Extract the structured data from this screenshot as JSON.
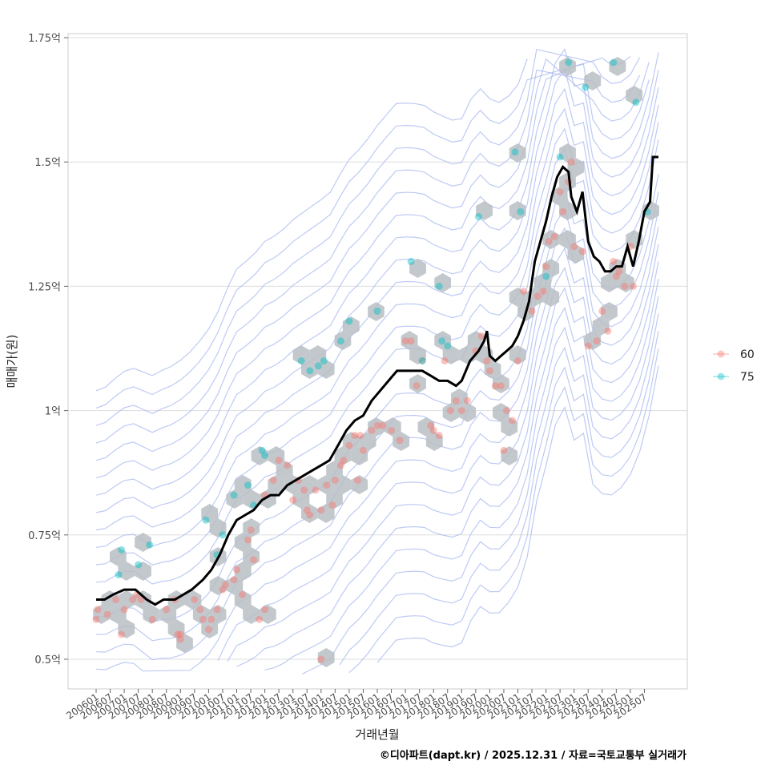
{
  "chart_data": {
    "type": "scatter",
    "title": "",
    "xlabel": "거래년월",
    "ylabel": "매매가(원)",
    "caption": "©디아파트(dapt.kr) / 2025.12.31 / 자료=국토교통부 실거래가",
    "x_range": [
      2006.0,
      2026.0
    ],
    "y_range": [
      0.45,
      1.76
    ],
    "grid": true,
    "y_ticks": [
      {
        "value": 0.5,
        "label": "0.5억"
      },
      {
        "value": 0.75,
        "label": "0.75억"
      },
      {
        "value": 1.0,
        "label": "1억"
      },
      {
        "value": 1.25,
        "label": "1.25억"
      },
      {
        "value": 1.5,
        "label": "1.5억"
      },
      {
        "value": 1.75,
        "label": "1.75억"
      }
    ],
    "x_ticks": [
      "200601",
      "200607",
      "200701",
      "200707",
      "200801",
      "200807",
      "200901",
      "200907",
      "201001",
      "201007",
      "201101",
      "201107",
      "201201",
      "201207",
      "201301",
      "201307",
      "201401",
      "201407",
      "201501",
      "201507",
      "201601",
      "201607",
      "201701",
      "201707",
      "201801",
      "201807",
      "201901",
      "201907",
      "202001",
      "202007",
      "202101",
      "202107",
      "202201",
      "202207",
      "202301",
      "202307",
      "202401",
      "202407",
      "202501",
      "202507"
    ],
    "legend": {
      "position": "right",
      "entries": [
        {
          "label": "60",
          "color": "#F8766D"
        },
        {
          "label": "75",
          "color": "#00BFC4"
        }
      ]
    },
    "series": [
      {
        "name": "60",
        "color": "#F8766D",
        "points": [
          [
            2006.0,
            0.58
          ],
          [
            2006.05,
            0.6
          ],
          [
            2006.4,
            0.59
          ],
          [
            2006.7,
            0.62
          ],
          [
            2006.9,
            0.55
          ],
          [
            2007.0,
            0.6
          ],
          [
            2007.3,
            0.62
          ],
          [
            2007.45,
            0.63
          ],
          [
            2007.6,
            0.62
          ],
          [
            2008.0,
            0.58
          ],
          [
            2008.5,
            0.6
          ],
          [
            2008.9,
            0.55
          ],
          [
            2009.0,
            0.54
          ],
          [
            2009.5,
            0.62
          ],
          [
            2009.7,
            0.6
          ],
          [
            2009.8,
            0.58
          ],
          [
            2010.0,
            0.56
          ],
          [
            2010.1,
            0.58
          ],
          [
            2010.3,
            0.6
          ],
          [
            2010.5,
            0.64
          ],
          [
            2010.6,
            0.65
          ],
          [
            2010.9,
            0.66
          ],
          [
            2011.0,
            0.68
          ],
          [
            2011.2,
            0.63
          ],
          [
            2011.4,
            0.74
          ],
          [
            2011.5,
            0.76
          ],
          [
            2011.6,
            0.7
          ],
          [
            2012.0,
            0.83
          ],
          [
            2012.3,
            0.86
          ],
          [
            2012.5,
            0.9
          ],
          [
            2012.8,
            0.89
          ],
          [
            2013.0,
            0.82
          ],
          [
            2013.2,
            0.86
          ],
          [
            2013.4,
            0.84
          ],
          [
            2013.5,
            0.8
          ],
          [
            2013.6,
            0.79
          ],
          [
            2013.8,
            0.84
          ],
          [
            2014.0,
            0.8
          ],
          [
            2014.2,
            0.85
          ],
          [
            2014.4,
            0.81
          ],
          [
            2014.5,
            0.86
          ],
          [
            2014.7,
            0.89
          ],
          [
            2014.8,
            0.9
          ],
          [
            2015.0,
            0.93
          ],
          [
            2015.2,
            0.95
          ],
          [
            2015.4,
            0.95
          ],
          [
            2015.5,
            0.92
          ],
          [
            2015.3,
            0.86
          ],
          [
            2015.8,
            0.96
          ],
          [
            2016.0,
            0.97
          ],
          [
            2016.2,
            0.97
          ],
          [
            2016.5,
            0.96
          ],
          [
            2016.8,
            0.94
          ],
          [
            2017.0,
            1.14
          ],
          [
            2017.2,
            1.14
          ],
          [
            2017.4,
            1.05
          ],
          [
            2017.6,
            1.1
          ],
          [
            2017.9,
            0.97
          ],
          [
            2018.0,
            0.96
          ],
          [
            2018.2,
            0.95
          ],
          [
            2018.4,
            1.1
          ],
          [
            2018.6,
            1.0
          ],
          [
            2018.8,
            1.02
          ],
          [
            2019.0,
            1.0
          ],
          [
            2019.2,
            1.02
          ],
          [
            2019.5,
            1.12
          ],
          [
            2019.7,
            1.15
          ],
          [
            2019.9,
            1.1
          ],
          [
            2020.0,
            1.08
          ],
          [
            2020.2,
            1.05
          ],
          [
            2020.4,
            1.05
          ],
          [
            2020.5,
            0.92
          ],
          [
            2020.6,
            1.0
          ],
          [
            2020.8,
            0.98
          ],
          [
            2021.0,
            1.1
          ],
          [
            2021.2,
            1.24
          ],
          [
            2021.5,
            1.2
          ],
          [
            2021.7,
            1.23
          ],
          [
            2021.9,
            1.24
          ],
          [
            2022.0,
            1.29
          ],
          [
            2022.1,
            1.34
          ],
          [
            2022.3,
            1.35
          ],
          [
            2022.5,
            1.44
          ],
          [
            2022.6,
            1.4
          ],
          [
            2022.8,
            1.46
          ],
          [
            2022.9,
            1.5
          ],
          [
            2023.0,
            1.33
          ],
          [
            2023.3,
            1.32
          ],
          [
            2023.5,
            1.13
          ],
          [
            2023.8,
            1.14
          ],
          [
            2024.0,
            1.2
          ],
          [
            2024.2,
            1.16
          ],
          [
            2024.4,
            1.3
          ],
          [
            2024.5,
            1.27
          ],
          [
            2024.6,
            1.28
          ],
          [
            2024.8,
            1.25
          ],
          [
            2025.0,
            1.33
          ],
          [
            2025.1,
            1.25
          ],
          [
            2014.0,
            0.5
          ],
          [
            2011.8,
            0.58
          ],
          [
            2012.0,
            0.6
          ],
          [
            2009.0,
            0.55
          ],
          [
            2008.8,
            0.62
          ]
        ]
      },
      {
        "name": "75",
        "color": "#00BFC4",
        "points": [
          [
            2006.8,
            0.67
          ],
          [
            2006.9,
            0.72
          ],
          [
            2007.5,
            0.69
          ],
          [
            2007.9,
            0.73
          ],
          [
            2009.9,
            0.78
          ],
          [
            2010.3,
            0.71
          ],
          [
            2010.5,
            0.75
          ],
          [
            2010.9,
            0.83
          ],
          [
            2011.4,
            0.85
          ],
          [
            2011.6,
            0.81
          ],
          [
            2011.9,
            0.92
          ],
          [
            2012.0,
            0.91
          ],
          [
            2013.3,
            1.1
          ],
          [
            2013.6,
            1.08
          ],
          [
            2013.9,
            1.09
          ],
          [
            2014.1,
            1.1
          ],
          [
            2014.7,
            1.14
          ],
          [
            2015.0,
            1.18
          ],
          [
            2016.0,
            1.2
          ],
          [
            2017.2,
            1.3
          ],
          [
            2017.6,
            1.1
          ],
          [
            2018.3,
            1.14
          ],
          [
            2018.5,
            1.13
          ],
          [
            2018.2,
            1.25
          ],
          [
            2019.6,
            1.39
          ],
          [
            2020.9,
            1.52
          ],
          [
            2021.1,
            1.4
          ],
          [
            2022.0,
            1.27
          ],
          [
            2022.5,
            1.51
          ],
          [
            2022.8,
            1.7
          ],
          [
            2023.4,
            1.65
          ],
          [
            2024.4,
            1.7
          ],
          [
            2025.2,
            1.62
          ],
          [
            2025.6,
            1.4
          ]
        ]
      }
    ],
    "trend_line": {
      "name": "moving-average",
      "color": "#000000",
      "points": [
        [
          2006.0,
          0.62
        ],
        [
          2006.3,
          0.62
        ],
        [
          2006.6,
          0.63
        ],
        [
          2007.0,
          0.64
        ],
        [
          2007.4,
          0.64
        ],
        [
          2007.8,
          0.62
        ],
        [
          2008.1,
          0.61
        ],
        [
          2008.4,
          0.62
        ],
        [
          2008.8,
          0.62
        ],
        [
          2009.1,
          0.63
        ],
        [
          2009.4,
          0.64
        ],
        [
          2009.8,
          0.66
        ],
        [
          2010.1,
          0.68
        ],
        [
          2010.4,
          0.71
        ],
        [
          2010.7,
          0.75
        ],
        [
          2011.0,
          0.78
        ],
        [
          2011.3,
          0.79
        ],
        [
          2011.6,
          0.8
        ],
        [
          2011.9,
          0.82
        ],
        [
          2012.2,
          0.83
        ],
        [
          2012.5,
          0.83
        ],
        [
          2012.8,
          0.85
        ],
        [
          2013.1,
          0.86
        ],
        [
          2013.4,
          0.87
        ],
        [
          2013.7,
          0.88
        ],
        [
          2014.0,
          0.89
        ],
        [
          2014.3,
          0.9
        ],
        [
          2014.6,
          0.93
        ],
        [
          2014.9,
          0.96
        ],
        [
          2015.2,
          0.98
        ],
        [
          2015.5,
          0.99
        ],
        [
          2015.8,
          1.02
        ],
        [
          2016.1,
          1.04
        ],
        [
          2016.4,
          1.06
        ],
        [
          2016.7,
          1.08
        ],
        [
          2017.0,
          1.08
        ],
        [
          2017.3,
          1.08
        ],
        [
          2017.6,
          1.08
        ],
        [
          2017.9,
          1.07
        ],
        [
          2018.2,
          1.06
        ],
        [
          2018.5,
          1.06
        ],
        [
          2018.8,
          1.05
        ],
        [
          2019.0,
          1.06
        ],
        [
          2019.3,
          1.1
        ],
        [
          2019.6,
          1.12
        ],
        [
          2019.8,
          1.14
        ],
        [
          2019.9,
          1.16
        ],
        [
          2020.0,
          1.11
        ],
        [
          2020.2,
          1.1
        ],
        [
          2020.4,
          1.11
        ],
        [
          2020.6,
          1.12
        ],
        [
          2020.8,
          1.13
        ],
        [
          2021.0,
          1.15
        ],
        [
          2021.2,
          1.18
        ],
        [
          2021.4,
          1.22
        ],
        [
          2021.6,
          1.3
        ],
        [
          2021.8,
          1.34
        ],
        [
          2022.0,
          1.38
        ],
        [
          2022.2,
          1.43
        ],
        [
          2022.4,
          1.47
        ],
        [
          2022.6,
          1.49
        ],
        [
          2022.8,
          1.48
        ],
        [
          2022.9,
          1.43
        ],
        [
          2023.1,
          1.4
        ],
        [
          2023.3,
          1.44
        ],
        [
          2023.5,
          1.34
        ],
        [
          2023.7,
          1.31
        ],
        [
          2023.9,
          1.3
        ],
        [
          2024.1,
          1.28
        ],
        [
          2024.3,
          1.28
        ],
        [
          2024.5,
          1.29
        ],
        [
          2024.7,
          1.29
        ],
        [
          2024.9,
          1.33
        ],
        [
          2025.1,
          1.29
        ],
        [
          2025.3,
          1.34
        ],
        [
          2025.5,
          1.4
        ],
        [
          2025.7,
          1.42
        ],
        [
          2025.8,
          1.51
        ],
        [
          2026.0,
          1.51
        ]
      ]
    },
    "density_contours": {
      "color": "#A8B8F0",
      "levels": 12
    },
    "hexbins": {
      "color": "#B8BEC4"
    }
  }
}
